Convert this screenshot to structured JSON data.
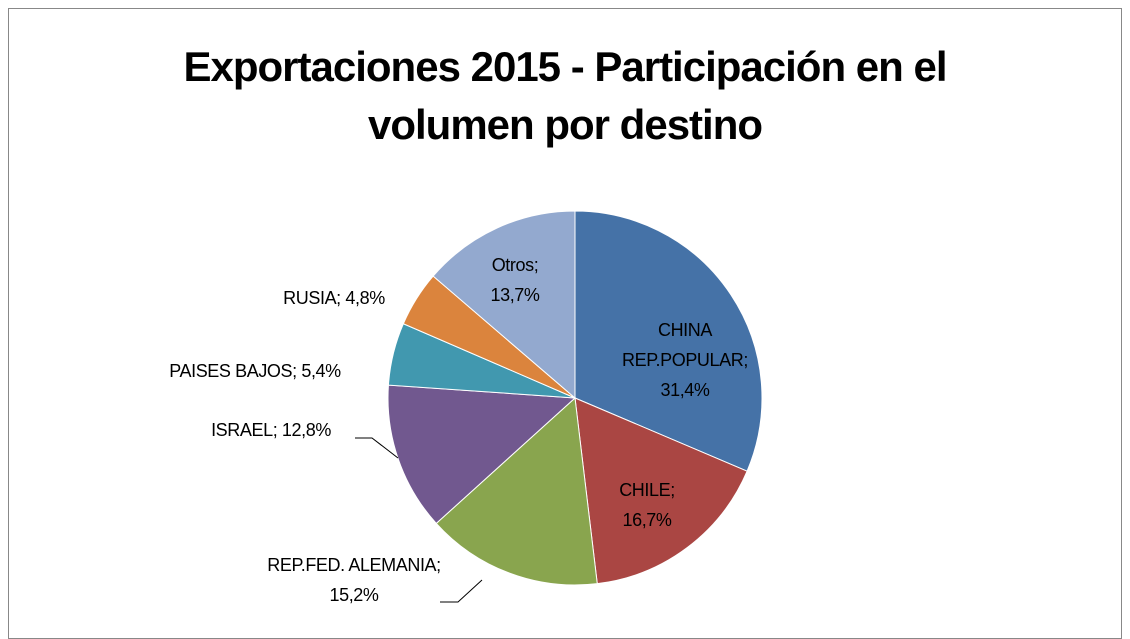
{
  "chart_data": {
    "type": "pie",
    "title": "Exportaciones 2015 - Participación en el volumen por destino",
    "values": [
      31.4,
      16.7,
      15.2,
      12.8,
      5.4,
      4.8,
      13.7
    ],
    "value_labels": [
      "CHINA REP.POPULAR; 31,4%",
      "CHILE; 16,7%",
      "REP.FED. ALEMANIA; 15,2%",
      "ISRAEL; 12,8%",
      "PAISES BAJOS; 5,4%",
      "RUSIA; 4,8%",
      "Otros; 13,7%"
    ],
    "colors": [
      "#4572a7",
      "#aa4643",
      "#89a54e",
      "#71588f",
      "#4198af",
      "#db843d",
      "#93a9cf"
    ]
  }
}
